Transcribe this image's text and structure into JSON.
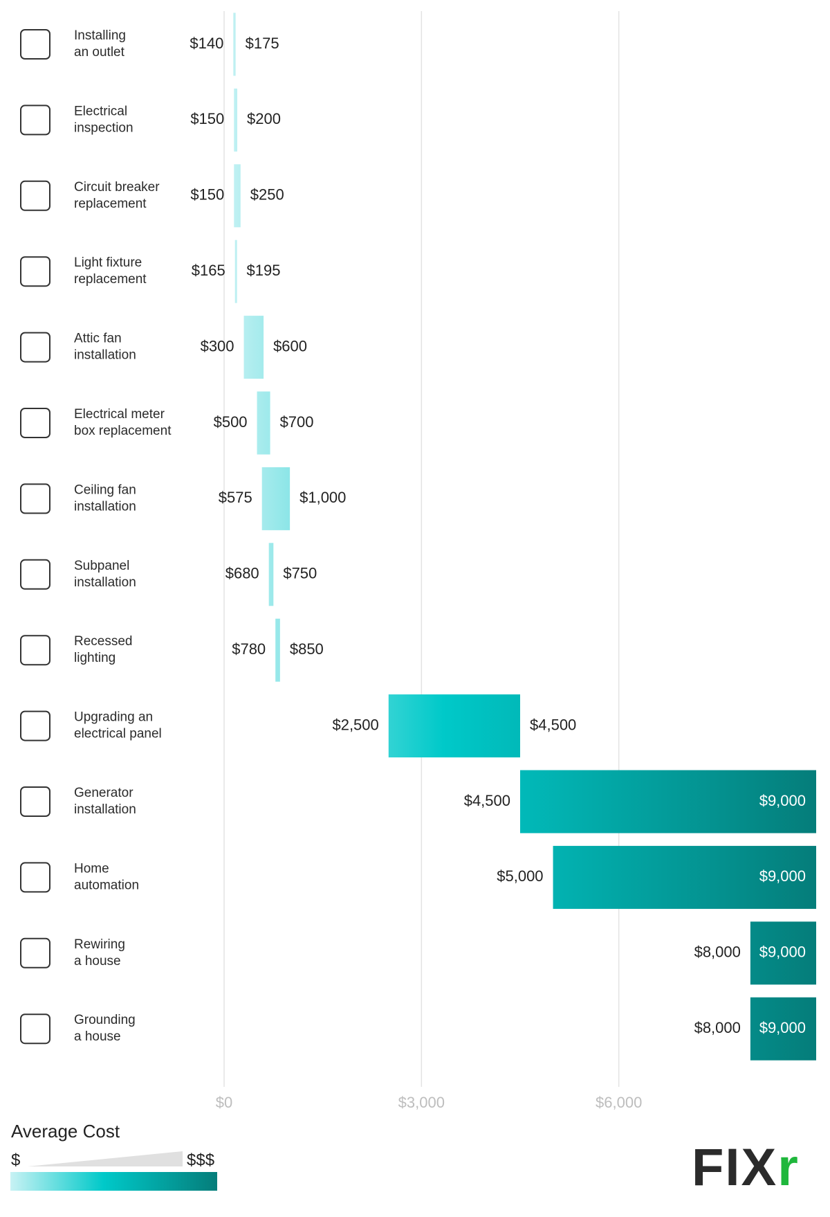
{
  "chart_data": {
    "type": "range-bar",
    "categories": [
      [
        "Installing",
        "an outlet"
      ],
      [
        "Electrical",
        "inspection"
      ],
      [
        "Circuit breaker",
        "replacement"
      ],
      [
        "Light fixture",
        "replacement"
      ],
      [
        "Attic fan",
        "installation"
      ],
      [
        "Electrical meter",
        "box replacement"
      ],
      [
        "Ceiling fan",
        "installation"
      ],
      [
        "Subpanel",
        "installation"
      ],
      [
        "Recessed",
        "lighting"
      ],
      [
        "Upgrading an",
        "electrical panel"
      ],
      [
        "Generator",
        "installation"
      ],
      [
        "Home",
        "automation"
      ],
      [
        "Rewiring",
        "a house"
      ],
      [
        "Grounding",
        "a house"
      ]
    ],
    "series": [
      {
        "values": [
          140,
          150,
          150,
          165,
          300,
          500,
          575,
          680,
          780,
          2500,
          4500,
          5000,
          8000,
          8000
        ],
        "value_labels": [
          "$140",
          "$150",
          "$150",
          "$165",
          "$300",
          "$500",
          "$575",
          "$680",
          "$780",
          "$2,500",
          "$4,500",
          "$5,000",
          "$8,000",
          "$8,000"
        ]
      },
      {
        "values": [
          175,
          200,
          250,
          195,
          600,
          700,
          1000,
          750,
          850,
          4500,
          9000,
          9000,
          9000,
          9000
        ],
        "value_labels": [
          "$175",
          "$200",
          "$250",
          "$195",
          "$600",
          "$700",
          "$1,000",
          "$750",
          "$850",
          "$4,500",
          "$9,000",
          "$9,000",
          "$9,000",
          "$9,000"
        ]
      }
    ],
    "xlim": [
      0,
      9000
    ],
    "xticks": [
      {
        "value": 0,
        "label": "$0"
      },
      {
        "value": 3000,
        "label": "$3,000"
      },
      {
        "value": 6000,
        "label": "$6,000"
      }
    ],
    "grid": true,
    "gradient": [
      "#c8f2f4",
      "#00c9c9",
      "#057d7a"
    ],
    "legend": {
      "title": "Average Cost",
      "low": "$",
      "high": "$$$"
    },
    "logo": [
      "FIX",
      "r"
    ]
  }
}
